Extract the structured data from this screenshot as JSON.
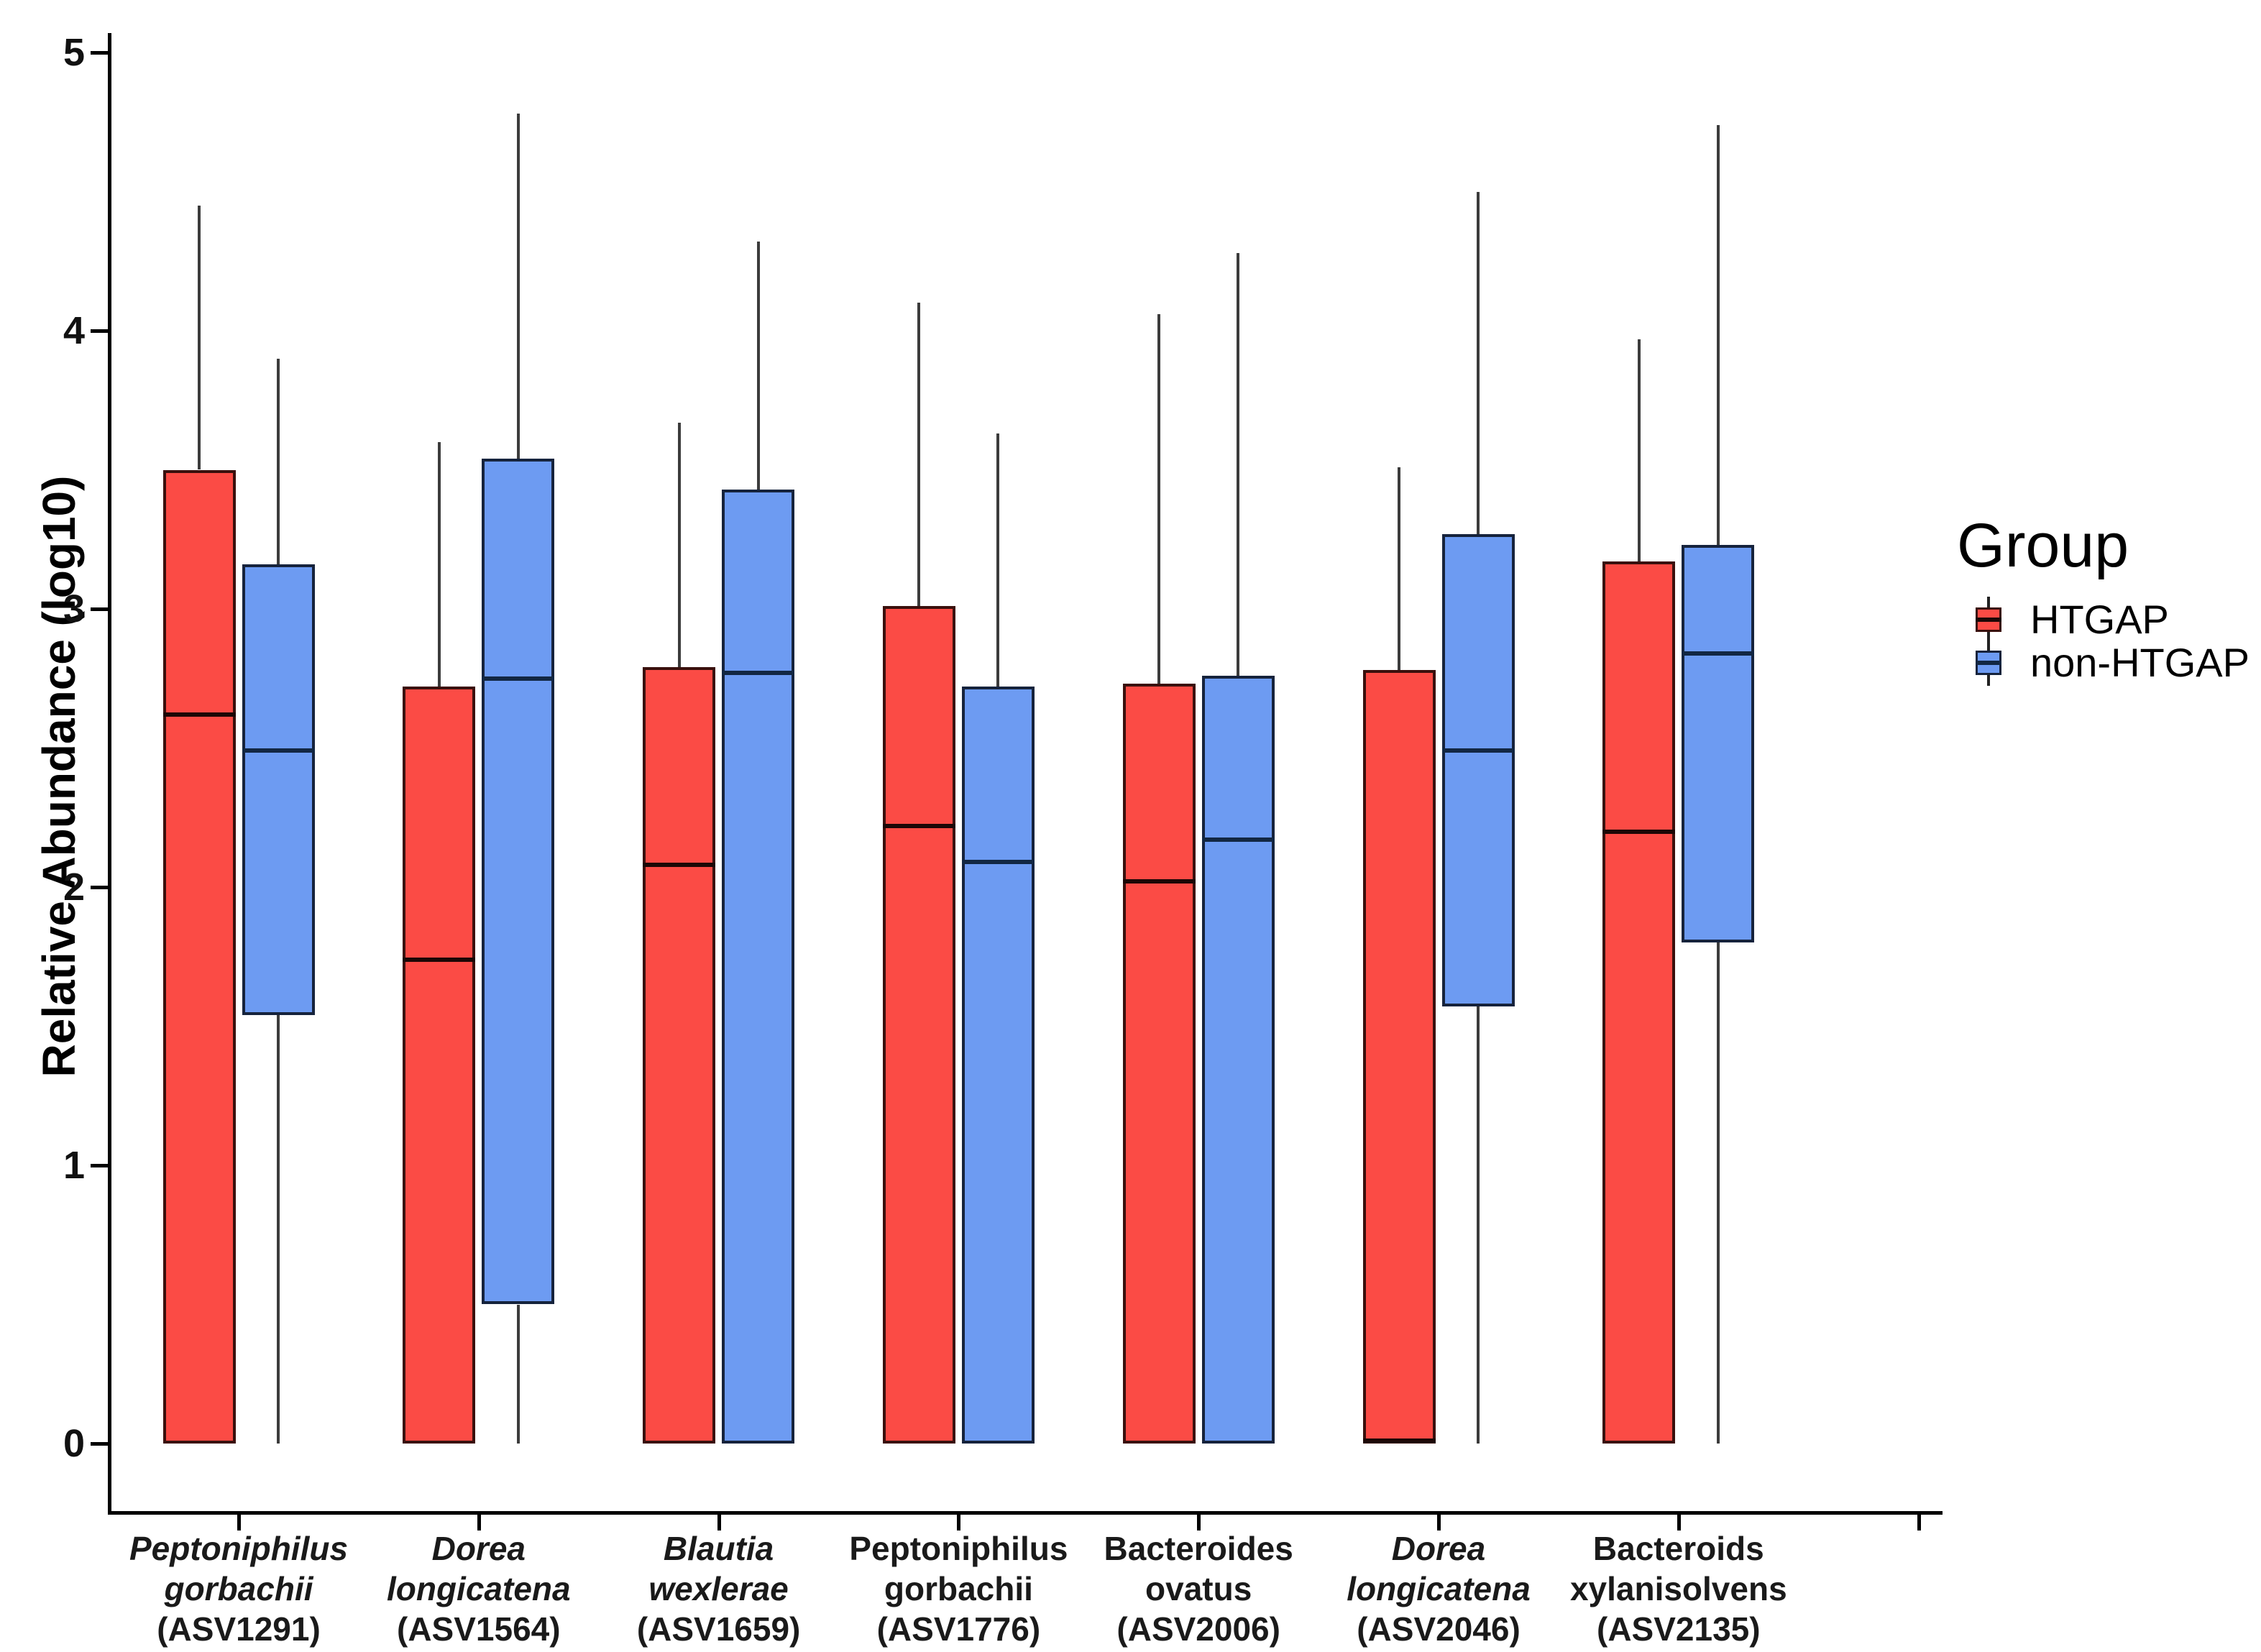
{
  "chart_data": {
    "type": "boxplot",
    "title": "",
    "ylabel": "Relative Abundance (log10)",
    "xlabel": "",
    "ylim": [
      0,
      5
    ],
    "yticks": [
      "0",
      "1",
      "2",
      "3",
      "4",
      "5"
    ],
    "grid": false,
    "legend": {
      "title": "Group",
      "position": "right",
      "entries": [
        {
          "label": "HTGAP",
          "color": "#FB4B45"
        },
        {
          "label": "non-HTGAP",
          "color": "#6D9BF2"
        }
      ]
    },
    "colors": {
      "htgap_fill": "#FB4B45",
      "htgap_border": "#3a100d",
      "htgap_median": "#1c0706",
      "non_htgap_fill": "#6D9BF2",
      "non_htgap_border": "#16233c",
      "non_htgap_median": "#122743",
      "whisker": "#3c3c3c",
      "axis": "#000000"
    },
    "x_axis_end_tick": true,
    "categories": [
      {
        "lines": [
          "Peptoniphilus",
          "gorbachii",
          "(ASV1291)"
        ],
        "italic": true,
        "values": [
          {
            "group": "HTGAP",
            "min": 0,
            "q1": 0,
            "median": 2.62,
            "q3": 3.5,
            "max": 4.45
          },
          {
            "group": "non-HTGAP",
            "min": 0,
            "q1": 1.54,
            "median": 2.49,
            "q3": 3.16,
            "max": 3.9
          }
        ]
      },
      {
        "lines": [
          "Dorea",
          "longicatena",
          "(ASV1564)"
        ],
        "italic": true,
        "values": [
          {
            "group": "HTGAP",
            "min": 0,
            "q1": 0,
            "median": 1.74,
            "q3": 2.72,
            "max": 3.6
          },
          {
            "group": "non-HTGAP",
            "min": 0,
            "q1": 0.5,
            "median": 2.75,
            "q3": 3.54,
            "max": 4.78
          }
        ]
      },
      {
        "lines": [
          "Blautia",
          "wexlerae",
          "(ASV1659)"
        ],
        "italic": true,
        "values": [
          {
            "group": "HTGAP",
            "min": 0,
            "q1": 0,
            "median": 2.08,
            "q3": 2.79,
            "max": 3.67
          },
          {
            "group": "non-HTGAP",
            "min": 0,
            "q1": 0,
            "median": 2.77,
            "q3": 3.43,
            "max": 4.32
          }
        ]
      },
      {
        "lines": [
          "Peptoniphilus",
          "gorbachii",
          "(ASV1776)"
        ],
        "italic": false,
        "values": [
          {
            "group": "HTGAP",
            "min": 0,
            "q1": 0,
            "median": 2.22,
            "q3": 3.01,
            "max": 4.1
          },
          {
            "group": "non-HTGAP",
            "min": 0,
            "q1": 0,
            "median": 2.09,
            "q3": 2.72,
            "max": 3.63
          }
        ]
      },
      {
        "lines": [
          "Bacteroides",
          "ovatus",
          "(ASV2006)"
        ],
        "italic": false,
        "values": [
          {
            "group": "HTGAP",
            "min": 0,
            "q1": 0,
            "median": 2.02,
            "q3": 2.73,
            "max": 4.06
          },
          {
            "group": "non-HTGAP",
            "min": 0,
            "q1": 0,
            "median": 2.17,
            "q3": 2.76,
            "max": 4.28
          }
        ]
      },
      {
        "lines": [
          "Dorea",
          "longicatena",
          "(ASV2046)"
        ],
        "italic": true,
        "values": [
          {
            "group": "HTGAP",
            "min": 0,
            "q1": 0,
            "median": 0.01,
            "q3": 2.78,
            "max": 3.51
          },
          {
            "group": "non-HTGAP",
            "min": 0,
            "q1": 1.57,
            "median": 2.49,
            "q3": 3.27,
            "max": 4.5
          }
        ]
      },
      {
        "lines": [
          "Bacteroids",
          "xylanisolvens",
          "(ASV2135)"
        ],
        "italic": false,
        "values": [
          {
            "group": "HTGAP",
            "min": 0,
            "q1": 0,
            "median": 2.2,
            "q3": 3.17,
            "max": 3.97
          },
          {
            "group": "non-HTGAP",
            "min": 0,
            "q1": 1.8,
            "median": 2.84,
            "q3": 3.23,
            "max": 4.74
          }
        ]
      }
    ]
  }
}
